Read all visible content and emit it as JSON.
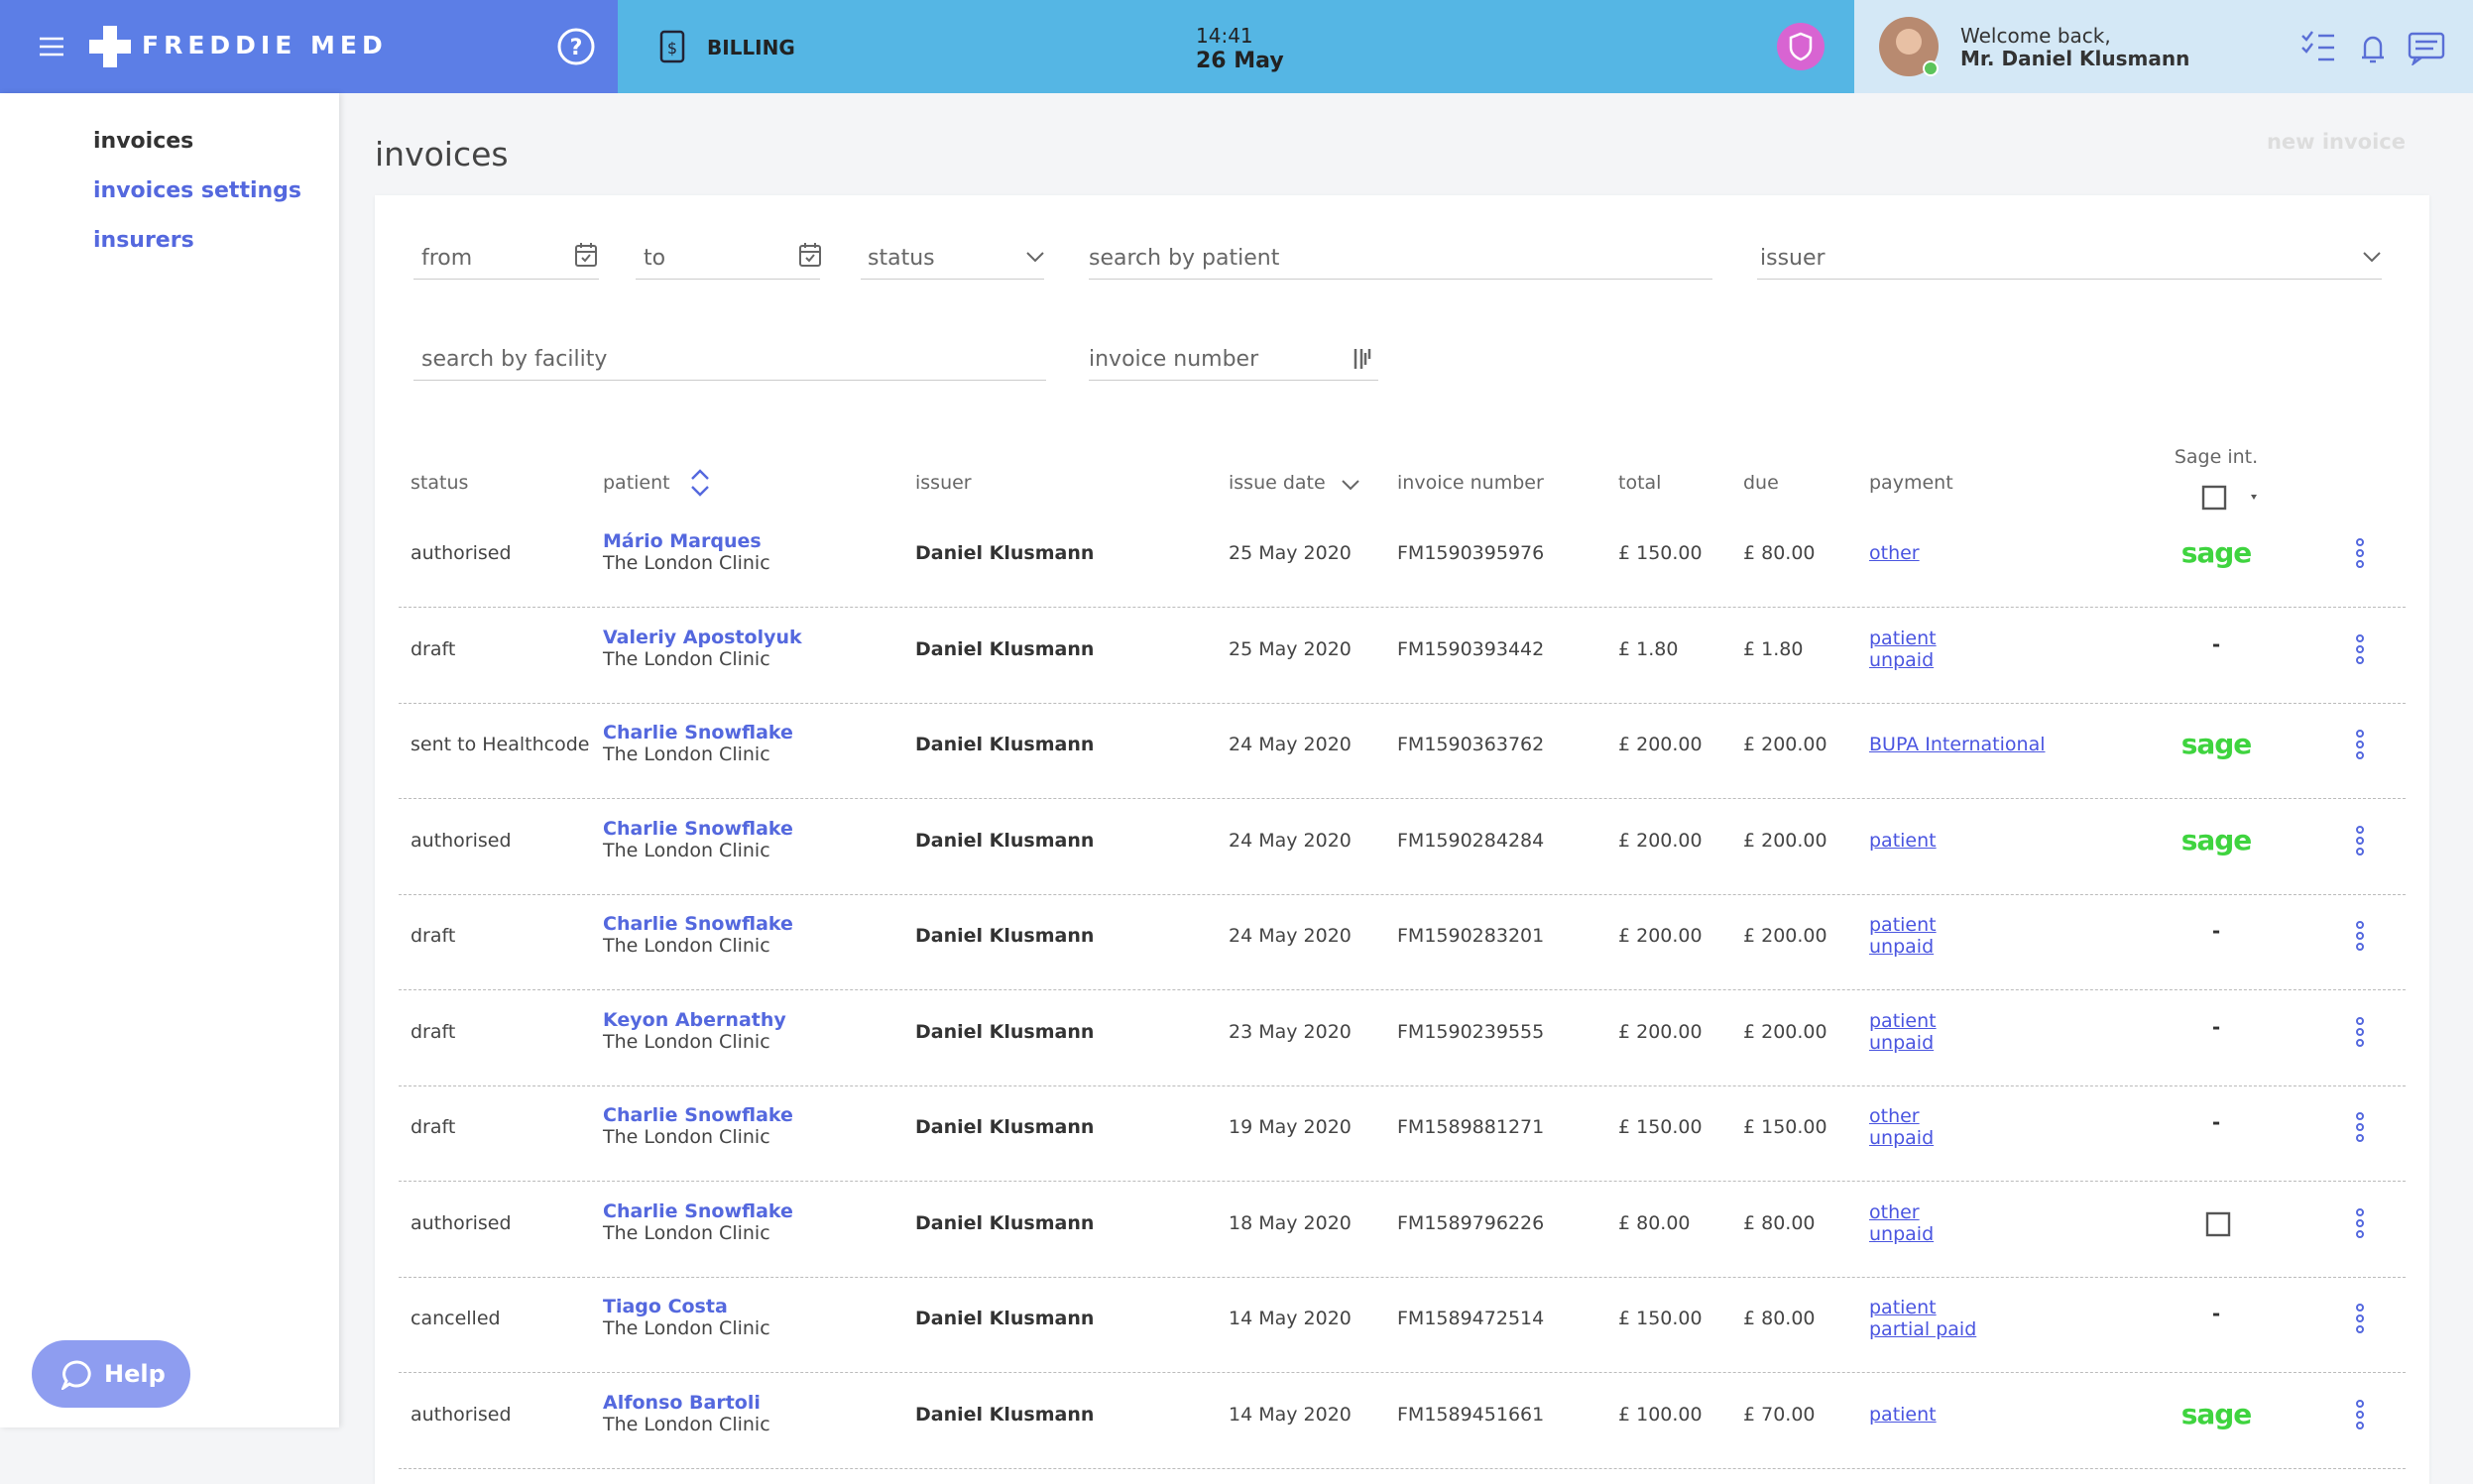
{
  "header": {
    "brand": "FREDDIE MED",
    "section": "BILLING",
    "time": "14:41",
    "date": "26 May",
    "welcome": "Welcome back,",
    "user": "Mr. Daniel Klusmann"
  },
  "sidebar": {
    "items": [
      "invoices",
      "invoices settings",
      "insurers"
    ]
  },
  "page": {
    "title": "invoices",
    "new_invoice": "new invoice"
  },
  "filters": {
    "from": "from",
    "to": "to",
    "status": "status",
    "patient": "search by patient",
    "issuer": "issuer",
    "facility": "search by facility",
    "invoice_number": "invoice number"
  },
  "table": {
    "columns": [
      "status",
      "patient",
      "issuer",
      "issue date",
      "invoice number",
      "total",
      "due",
      "payment",
      "Sage int."
    ],
    "rows": [
      {
        "status": "authorised",
        "patient": "Mário Marques",
        "facility": "The London Clinic",
        "issuer": "Daniel Klusmann",
        "date": "25 May 2020",
        "number": "FM1590395976",
        "total": "£ 150.00",
        "due": "£ 80.00",
        "payment": [
          "other"
        ],
        "sage": "sage"
      },
      {
        "status": "draft",
        "patient": "Valeriy Apostolyuk",
        "facility": "The London Clinic",
        "issuer": "Daniel Klusmann",
        "date": "25 May 2020",
        "number": "FM1590393442",
        "total": "£ 1.80",
        "due": "£ 1.80",
        "payment": [
          "patient",
          "unpaid"
        ],
        "sage": "-"
      },
      {
        "status": "sent to Healthcode",
        "patient": "Charlie Snowflake",
        "facility": "The London Clinic",
        "issuer": "Daniel Klusmann",
        "date": "24 May 2020",
        "number": "FM1590363762",
        "total": "£ 200.00",
        "due": "£ 200.00",
        "payment": [
          "BUPA International"
        ],
        "sage": "sage"
      },
      {
        "status": "authorised",
        "patient": "Charlie Snowflake",
        "facility": "The London Clinic",
        "issuer": "Daniel Klusmann",
        "date": "24 May 2020",
        "number": "FM1590284284",
        "total": "£ 200.00",
        "due": "£ 200.00",
        "payment": [
          "patient"
        ],
        "sage": "sage"
      },
      {
        "status": "draft",
        "patient": "Charlie Snowflake",
        "facility": "The London Clinic",
        "issuer": "Daniel Klusmann",
        "date": "24 May 2020",
        "number": "FM1590283201",
        "total": "£ 200.00",
        "due": "£ 200.00",
        "payment": [
          "patient",
          "unpaid"
        ],
        "sage": "-"
      },
      {
        "status": "draft",
        "patient": "Keyon Abernathy",
        "facility": "The London Clinic",
        "issuer": "Daniel Klusmann",
        "date": "23 May 2020",
        "number": "FM1590239555",
        "total": "£ 200.00",
        "due": "£ 200.00",
        "payment": [
          "patient",
          "unpaid"
        ],
        "sage": "-"
      },
      {
        "status": "draft",
        "patient": "Charlie Snowflake",
        "facility": "The London Clinic",
        "issuer": "Daniel Klusmann",
        "date": "19 May 2020",
        "number": "FM1589881271",
        "total": "£ 150.00",
        "due": "£ 150.00",
        "payment": [
          "other",
          "unpaid"
        ],
        "sage": "-"
      },
      {
        "status": "authorised",
        "patient": "Charlie Snowflake",
        "facility": "The London Clinic",
        "issuer": "Daniel Klusmann",
        "date": "18 May 2020",
        "number": "FM1589796226",
        "total": "£ 80.00",
        "due": "£ 80.00",
        "payment": [
          "other",
          "unpaid"
        ]
      },
      {
        "status": "cancelled",
        "patient": "Tiago Costa",
        "facility": "The London Clinic",
        "issuer": "Daniel Klusmann",
        "date": "14 May 2020",
        "number": "FM1589472514",
        "total": "£ 150.00",
        "due": "£ 80.00",
        "payment": [
          "patient",
          "partial paid"
        ],
        "sage": "-"
      },
      {
        "status": "authorised",
        "patient": "Alfonso Bartoli",
        "facility": "The London Clinic",
        "issuer": "Daniel Klusmann",
        "date": "14 May 2020",
        "number": "FM1589451661",
        "total": "£ 100.00",
        "due": "£ 70.00",
        "payment": [
          "patient"
        ],
        "sage": "sage"
      }
    ]
  },
  "help": "Help"
}
